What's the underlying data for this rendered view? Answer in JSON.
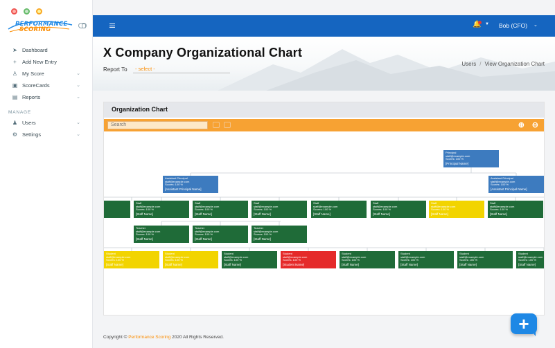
{
  "brand": {
    "logo_line1": "PERFORMANCE",
    "logo_line2": "SCORING"
  },
  "sidebar": {
    "items": [
      {
        "label": "Dashboard",
        "icon": "send-icon",
        "chevron": false
      },
      {
        "label": "Add New Entry",
        "icon": "plus-icon",
        "chevron": false
      },
      {
        "label": "My Score",
        "icon": "user-icon",
        "chevron": true
      },
      {
        "label": "ScoreCards",
        "icon": "scorecard-icon",
        "chevron": true
      },
      {
        "label": "Reports",
        "icon": "report-icon",
        "chevron": true
      }
    ],
    "section_label": "MANAGE",
    "manage_items": [
      {
        "label": "Users",
        "icon": "users-icon",
        "chevron": true
      },
      {
        "label": "Settings",
        "icon": "gear-icon",
        "chevron": true
      }
    ]
  },
  "topbar": {
    "user_name": "Bob (CFO)"
  },
  "page": {
    "title": "X Company Organizational Chart",
    "report_to_label": "Report To",
    "report_to_value": "- select -",
    "breadcrumb": [
      "Users",
      "View Organization Chart"
    ]
  },
  "card": {
    "title": "Organization Chart",
    "search_placeholder": "Search"
  },
  "org": {
    "principal": {
      "lines": [
        "Principal",
        "staff@example.com",
        "Scores: 100 %"
      ],
      "name": "[Principal Name]"
    },
    "assistants": [
      {
        "lines": [
          "Assistant Principal",
          "staff@example.com",
          "Scores: 100 %"
        ],
        "name": "[Assistant Principal Name]"
      },
      {
        "lines": [
          "Assistant Principal",
          "staff@example.com",
          "Scores: 100 %"
        ],
        "name": "[Assistant Principal Name]"
      }
    ],
    "row3": [
      {
        "color": "green",
        "lines": [
          "",
          "",
          ""
        ],
        "name": ""
      },
      {
        "color": "green",
        "lines": [
          "Staff",
          "staff@example.com",
          "Scores: 100 %"
        ],
        "name": "[Staff Name]"
      },
      {
        "color": "green",
        "lines": [
          "Staff",
          "staff@example.com",
          "Scores: 100 %"
        ],
        "name": "[Staff Name]"
      },
      {
        "color": "green",
        "lines": [
          "Staff",
          "staff@example.com",
          "Scores: 100 %"
        ],
        "name": "[Staff Name]"
      },
      {
        "color": "green",
        "lines": [
          "Staff",
          "staff@example.com",
          "Scores: 100 %"
        ],
        "name": "[Staff Name]"
      },
      {
        "color": "green",
        "lines": [
          "Staff",
          "staff@example.com",
          "Scores: 100 %"
        ],
        "name": "[Staff Name]"
      },
      {
        "color": "yellow",
        "lines": [
          "Staff",
          "staff@example.com",
          "Scores: 100 %"
        ],
        "name": "[Staff Name]"
      },
      {
        "color": "green",
        "lines": [
          "Staff",
          "staff@example.com",
          "Scores: 100 %"
        ],
        "name": "[Staff Name]"
      }
    ],
    "row4": [
      {
        "color": "green",
        "lines": [
          "Teacher",
          "staff@example.com",
          "Scores: 100 %"
        ],
        "name": "[Staff Name]"
      },
      {
        "color": "green",
        "lines": [
          "Teacher",
          "staff@example.com",
          "Scores: 100 %"
        ],
        "name": "[Staff Name]"
      },
      {
        "color": "green",
        "lines": [
          "Teacher",
          "staff@example.com",
          "Scores: 100 %"
        ],
        "name": "[Staff Name]"
      }
    ],
    "row5": [
      {
        "color": "yellow",
        "lines": [
          "Student",
          "staff@example.com",
          "Scores: 100 %"
        ],
        "name": "[Staff Name]"
      },
      {
        "color": "yellow",
        "lines": [
          "Student",
          "staff@example.com",
          "Scores: 100 %"
        ],
        "name": "[Staff Name]"
      },
      {
        "color": "green",
        "lines": [
          "Student",
          "staff@example.com",
          "Scores: 100 %"
        ],
        "name": "[Staff Name]"
      },
      {
        "color": "red",
        "lines": [
          "Student",
          "staff@example.com",
          "Scores: 100 %"
        ],
        "name": "[Student Name]"
      },
      {
        "color": "green",
        "lines": [
          "Student",
          "staff@example.com",
          "Scores: 100 %"
        ],
        "name": "[Staff Name]"
      },
      {
        "color": "green",
        "lines": [
          "Student",
          "staff@example.com",
          "Scores: 100 %"
        ],
        "name": "[Staff Name]"
      },
      {
        "color": "green",
        "lines": [
          "Student",
          "staff@example.com",
          "Scores: 100 %"
        ],
        "name": "[Staff Name]"
      },
      {
        "color": "green",
        "lines": [
          "Student",
          "staff@example.com",
          "Scores: 100 %"
        ],
        "name": "[Staff Name]"
      }
    ]
  },
  "footer": {
    "prefix": "Copyright ©",
    "brand": "Performance Scoring",
    "suffix": "2020 All Rights Reserved."
  }
}
